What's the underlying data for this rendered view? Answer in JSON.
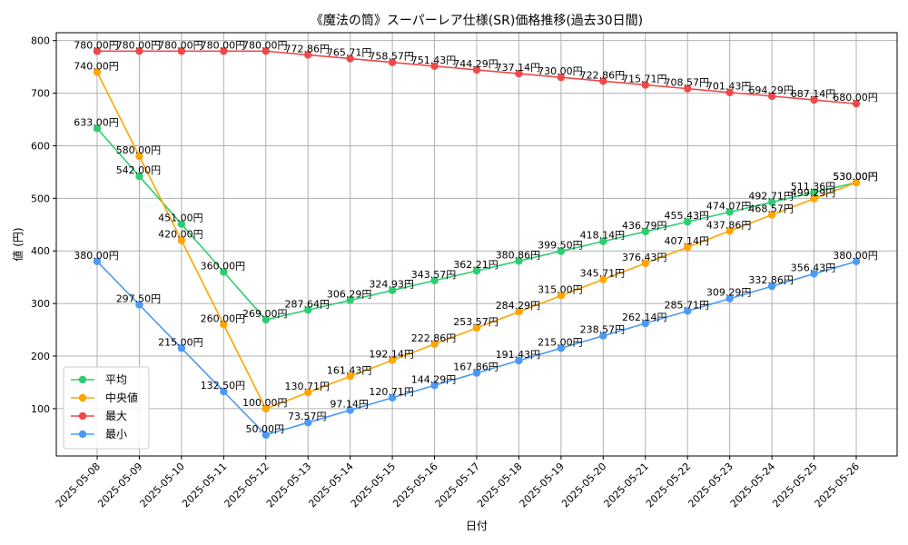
{
  "chart_data": {
    "type": "line",
    "title": "《魔法の筒》スーパーレア仕様(SR)価格推移(過去30日間)",
    "xlabel": "日付",
    "ylabel": "値 (円)",
    "ylim": [
      10,
      815
    ],
    "yticks": [
      100,
      200,
      300,
      400,
      500,
      600,
      700,
      800
    ],
    "grid": true,
    "legend_position": "lower-left",
    "label_suffix": "円",
    "categories": [
      "2025-05-08",
      "2025-05-09",
      "2025-05-10",
      "2025-05-11",
      "2025-05-12",
      "2025-05-13",
      "2025-05-14",
      "2025-05-15",
      "2025-05-16",
      "2025-05-17",
      "2025-05-18",
      "2025-05-19",
      "2025-05-20",
      "2025-05-21",
      "2025-05-22",
      "2025-05-23",
      "2025-05-24",
      "2025-05-25",
      "2025-05-26"
    ],
    "series": [
      {
        "name": "平均",
        "color": "#2ecc71",
        "values": [
          633.0,
          542.0,
          451.0,
          360.0,
          269.0,
          287.64,
          306.29,
          324.93,
          343.57,
          362.21,
          380.86,
          399.5,
          418.14,
          436.79,
          455.43,
          474.07,
          492.71,
          511.36,
          530.0
        ]
      },
      {
        "name": "中央値",
        "color": "#ffa500",
        "values": [
          740.0,
          580.0,
          420.0,
          260.0,
          100.0,
          130.71,
          161.43,
          192.14,
          222.86,
          253.57,
          284.29,
          315.0,
          345.71,
          376.43,
          407.14,
          437.86,
          468.57,
          499.29,
          530.0
        ]
      },
      {
        "name": "最大",
        "color": "#f04848",
        "values": [
          780.0,
          780.0,
          780.0,
          780.0,
          780.0,
          772.86,
          765.71,
          758.57,
          751.43,
          744.29,
          737.14,
          730.0,
          722.86,
          715.71,
          708.57,
          701.43,
          694.29,
          687.14,
          680.0
        ]
      },
      {
        "name": "最小",
        "color": "#4a9af5",
        "values": [
          380.0,
          297.5,
          215.0,
          132.5,
          50.0,
          73.57,
          97.14,
          120.71,
          144.29,
          167.86,
          191.43,
          215.0,
          238.57,
          262.14,
          285.71,
          309.29,
          332.86,
          356.43,
          380.0
        ]
      }
    ]
  }
}
